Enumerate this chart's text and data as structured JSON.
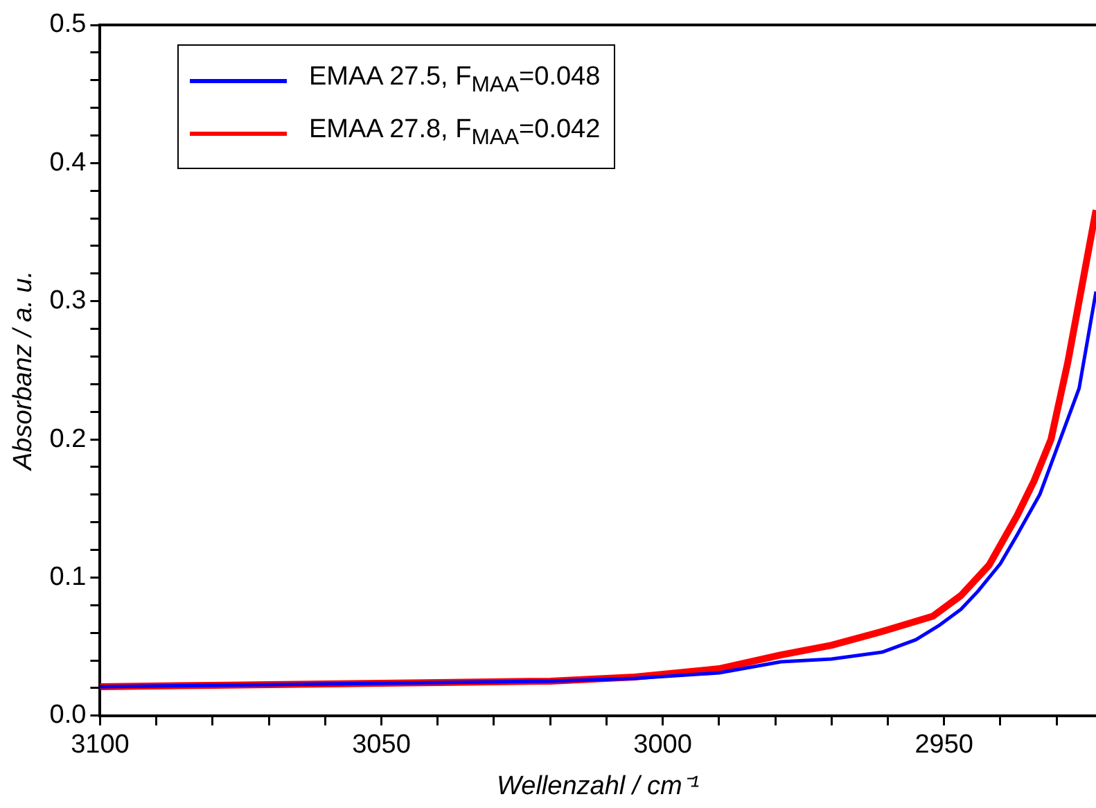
{
  "chart_data": {
    "type": "line",
    "xlabel": "Wellenzahl / cm⁻¹",
    "ylabel": "Absorbanz / a. u.",
    "xlim": [
      3100,
      2923
    ],
    "ylim": [
      0,
      0.5
    ],
    "xticks": [
      3100,
      {
        "value": 3090,
        "label": null
      },
      {
        "value": 3080,
        "label": null
      },
      {
        "value": 3070,
        "label": null
      },
      {
        "value": 3060,
        "label": null
      },
      3050,
      {
        "value": 3040,
        "label": null
      },
      {
        "value": 3030,
        "label": null
      },
      {
        "value": 3020,
        "label": null
      },
      {
        "value": 3010,
        "label": null
      },
      3000,
      {
        "value": 2990,
        "label": null
      },
      {
        "value": 2980,
        "label": null
      },
      {
        "value": 2970,
        "label": null
      },
      {
        "value": 2960,
        "label": null
      },
      2950,
      {
        "value": 2940,
        "label": null
      },
      {
        "value": 2930,
        "label": null
      }
    ],
    "yticks": [
      {
        "value": 0,
        "label": "0.0"
      },
      {
        "value": 0.02,
        "label": null
      },
      {
        "value": 0.04,
        "label": null
      },
      {
        "value": 0.06,
        "label": null
      },
      {
        "value": 0.08,
        "label": null
      },
      0.1,
      {
        "value": 0.12,
        "label": null
      },
      {
        "value": 0.14,
        "label": null
      },
      {
        "value": 0.16,
        "label": null
      },
      {
        "value": 0.18,
        "label": null
      },
      0.2,
      {
        "value": 0.22,
        "label": null
      },
      {
        "value": 0.24,
        "label": null
      },
      {
        "value": 0.26,
        "label": null
      },
      {
        "value": 0.28,
        "label": null
      },
      0.3,
      {
        "value": 0.32,
        "label": null
      },
      {
        "value": 0.34,
        "label": null
      },
      {
        "value": 0.36,
        "label": null
      },
      {
        "value": 0.38,
        "label": null
      },
      0.4,
      {
        "value": 0.42,
        "label": null
      },
      {
        "value": 0.44,
        "label": null
      },
      {
        "value": 0.46,
        "label": null
      },
      {
        "value": 0.48,
        "label": null
      },
      0.5
    ],
    "grid": false,
    "legend": "top left",
    "marker": "none",
    "line_style": "solid",
    "series": [
      {
        "name": "EMAA 27.5, F$_{MAA}$=0.048",
        "color": "#0000ff",
        "x": [
          3100,
          3080,
          3060,
          3040,
          3020,
          3005,
          2990,
          2979,
          2970,
          2961,
          2955,
          2951,
          2947,
          2944,
          2940,
          2937,
          2933,
          2930,
          2926,
          2923
        ],
        "values": [
          0.021,
          0.022,
          0.023,
          0.024,
          0.025,
          0.027,
          0.031,
          0.039,
          0.041,
          0.046,
          0.055,
          0.065,
          0.077,
          0.09,
          0.11,
          0.131,
          0.16,
          0.193,
          0.237,
          0.307
        ]
      },
      {
        "name": "EMAA 27.8, F$_{MAA}$=0.042",
        "color": "#ff0000",
        "x": [
          3100,
          3080,
          3060,
          3040,
          3020,
          3005,
          2990,
          2979,
          2970,
          2961,
          2952,
          2947,
          2942,
          2937,
          2934,
          2931,
          2928,
          2923
        ],
        "values": [
          0.021,
          0.022,
          0.023,
          0.024,
          0.025,
          0.028,
          0.034,
          0.044,
          0.051,
          0.061,
          0.072,
          0.087,
          0.109,
          0.145,
          0.17,
          0.2,
          0.256,
          0.366
        ]
      }
    ]
  }
}
